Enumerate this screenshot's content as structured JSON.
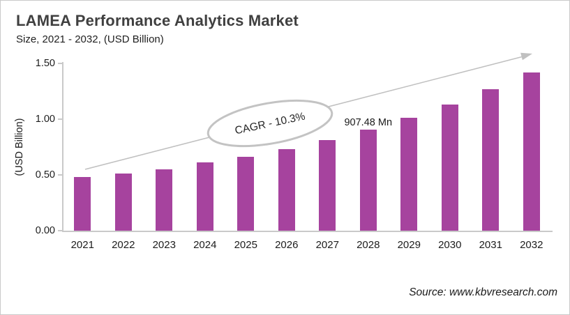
{
  "chart_data": {
    "type": "bar",
    "title": "LAMEA Performance Analytics Market",
    "subtitle": "Size, 2021 - 2032, (USD Billion)",
    "categories": [
      "2021",
      "2022",
      "2023",
      "2024",
      "2025",
      "2026",
      "2027",
      "2028",
      "2029",
      "2030",
      "2031",
      "2032"
    ],
    "values": [
      0.48,
      0.51,
      0.55,
      0.61,
      0.66,
      0.73,
      0.81,
      0.907,
      1.01,
      1.13,
      1.27,
      1.42
    ],
    "xlabel": "",
    "ylabel": "(USD Billion)",
    "ylim": [
      0,
      1.5
    ],
    "yticks": [
      0,
      0.5,
      1.0,
      1.5
    ],
    "ytick_labels": [
      "0.00",
      "0.50",
      "1.00",
      "1.50"
    ],
    "grid": false,
    "legend": false,
    "bar_color": "#A6439E",
    "annotations": {
      "cagr_label": "CAGR - 10.3%",
      "data_label": {
        "category": "2028",
        "text": "907.48 Mn"
      },
      "trend_arrow": true
    }
  },
  "source": {
    "text": "Source: www.kbvresearch.com"
  },
  "colors": {
    "bar": "#A6439E",
    "axis": "#C9C9C9",
    "arrow": "#C0C0C0",
    "ellipse_border": "#C3C3C3",
    "title": "#404040",
    "text": "#1A1A1A"
  }
}
